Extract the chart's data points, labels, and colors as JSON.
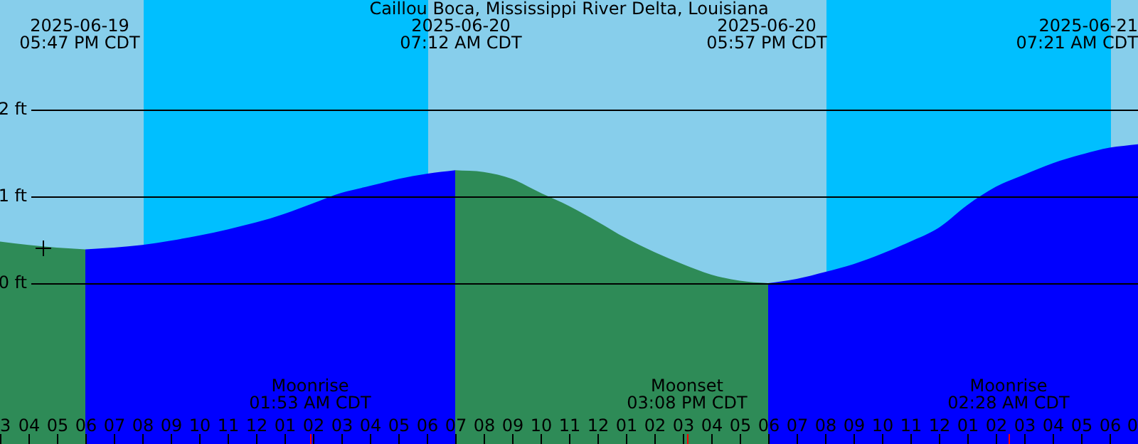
{
  "chart_data": {
    "type": "area",
    "title": "Caillou Boca, Mississippi River Delta, Louisiana",
    "categories": [
      "3",
      "04",
      "05",
      "06",
      "07",
      "08",
      "09",
      "10",
      "11",
      "12",
      "01",
      "02",
      "03",
      "04",
      "05",
      "06",
      "07",
      "08",
      "09",
      "10",
      "11",
      "12",
      "01",
      "02",
      "03",
      "04",
      "05",
      "06",
      "07",
      "08",
      "09",
      "10",
      "11",
      "12",
      "01",
      "02",
      "03",
      "04",
      "05",
      "06",
      "0"
    ],
    "series": [
      {
        "color": "#2e8b57",
        "values": [
          0.48,
          0.44,
          0.41,
          0.39,
          null,
          null,
          null,
          null,
          null,
          null,
          null,
          null,
          null,
          null,
          null,
          null,
          1.3,
          1.28,
          1.2,
          1.04,
          0.89,
          0.71,
          0.52,
          0.36,
          0.22,
          0.1,
          0.03,
          0.0,
          null,
          null,
          null,
          null,
          null,
          null,
          null,
          null,
          null,
          null,
          null,
          null,
          null
        ]
      },
      {
        "color": "#0000ff",
        "values": [
          null,
          null,
          null,
          0.39,
          0.41,
          0.44,
          0.49,
          0.55,
          0.62,
          0.7,
          0.8,
          0.92,
          1.04,
          1.12,
          1.2,
          1.26,
          1.3,
          null,
          null,
          null,
          null,
          null,
          null,
          null,
          null,
          null,
          null,
          0.0,
          0.05,
          0.13,
          0.22,
          0.34,
          0.48,
          0.64,
          0.9,
          1.11,
          1.25,
          1.38,
          1.48,
          1.56,
          1.6
        ]
      }
    ],
    "ylim": [
      -1.85,
      3.26
    ],
    "yticks": [
      {
        "value": 0,
        "label": "0 ft"
      },
      {
        "value": 1,
        "label": "1 ft"
      },
      {
        "value": 2,
        "label": "2 ft"
      }
    ],
    "grid": "y",
    "legend": false,
    "annotations": [
      "2025-06-19\n05:47 PM CDT",
      "2025-06-20\n07:12 AM CDT",
      "2025-06-20\n05:57 PM CDT",
      "2025-06-21\n07:21 AM CDT",
      "Moonrise\n01:53 AM CDT",
      "Moonset\n03:08 PM CDT",
      "Moonrise\n02:28 AM CDT"
    ]
  }
}
